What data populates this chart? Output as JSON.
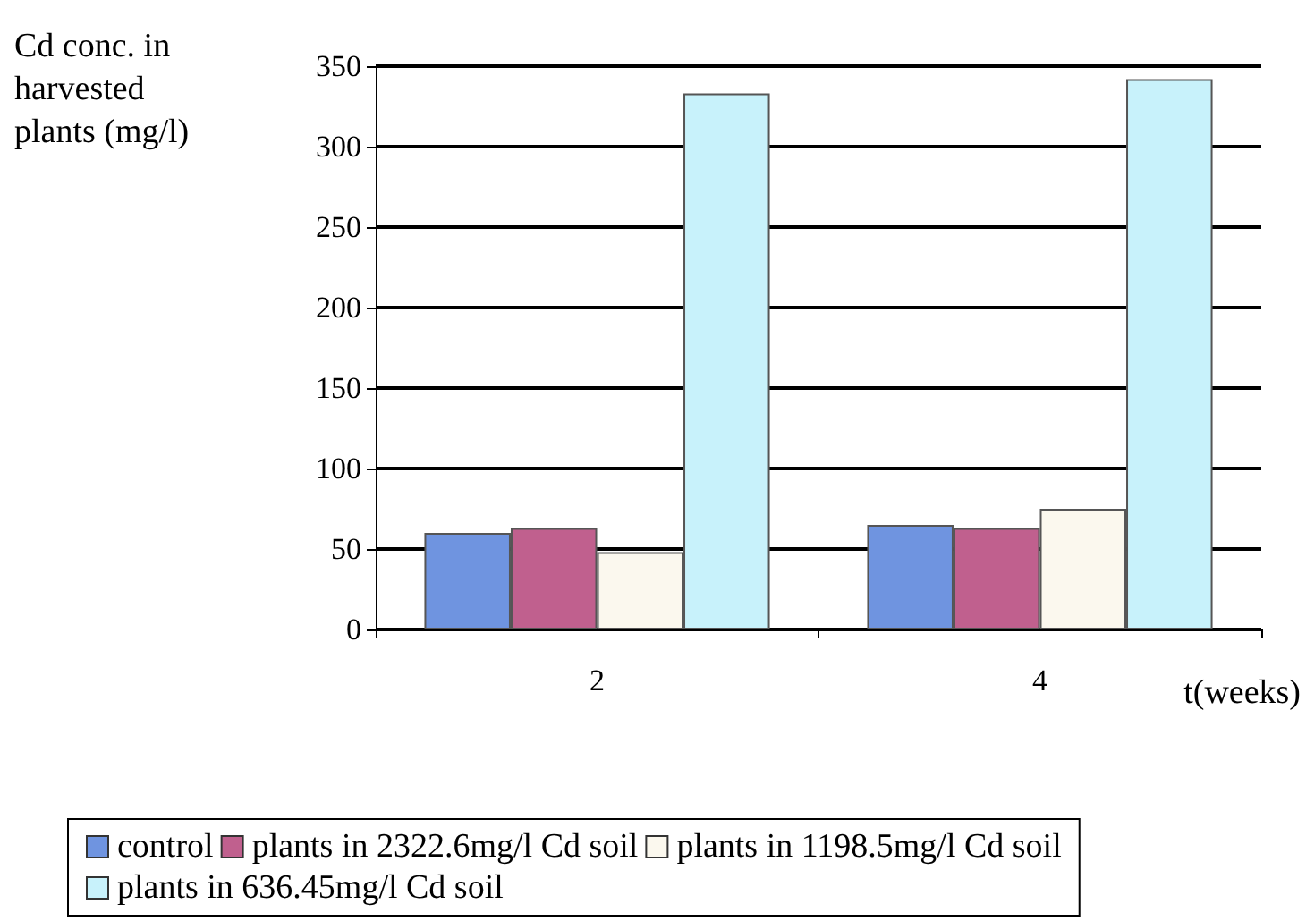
{
  "chart_data": {
    "type": "bar",
    "ylabel": "Cd conc. in harvested plants (mg/l)",
    "xlabel": "t(weeks)",
    "categories": [
      "2",
      "4"
    ],
    "series": [
      {
        "name": "control",
        "color": "#6f94e0",
        "values": [
          60,
          65
        ]
      },
      {
        "name": "plants in 2322.6mg/l Cd soil",
        "color": "#c0608e",
        "values": [
          63,
          63
        ]
      },
      {
        "name": "plants in 1198.5mg/l Cd soil",
        "color": "#fbf8ee",
        "values": [
          48,
          75
        ]
      },
      {
        "name": "plants in 636.45mg/l Cd soil",
        "color": "#c8f2fb",
        "values": [
          333,
          342
        ]
      }
    ],
    "ylim": [
      0,
      350
    ],
    "yticks": [
      0,
      50,
      100,
      150,
      200,
      250,
      300,
      350
    ],
    "grid": "y",
    "legend": "bottom"
  }
}
